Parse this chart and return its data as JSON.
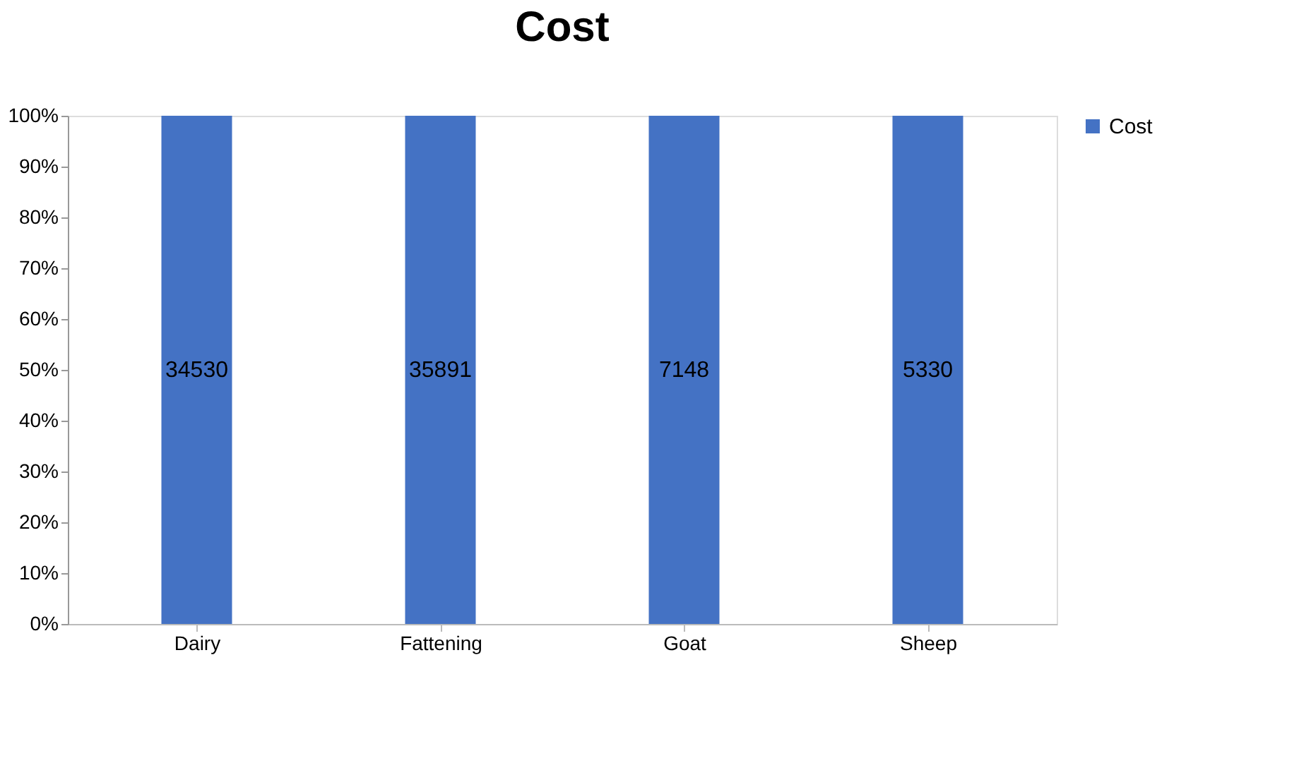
{
  "chart_data": {
    "type": "bar",
    "title": "Cost",
    "categories": [
      "Dairy",
      "Fattening",
      "Goat",
      "Sheep"
    ],
    "series": [
      {
        "name": "Cost",
        "color": "#4472c4",
        "values": [
          100,
          100,
          100,
          100
        ]
      }
    ],
    "annotations": [
      "34530",
      "35891",
      "7148",
      "5330"
    ],
    "ylim": [
      0,
      100
    ],
    "yticks": [
      {
        "value": 0,
        "label": "0%"
      },
      {
        "value": 10,
        "label": "10%"
      },
      {
        "value": 20,
        "label": "20%"
      },
      {
        "value": 30,
        "label": "30%"
      },
      {
        "value": 40,
        "label": "40%"
      },
      {
        "value": 50,
        "label": "50%"
      },
      {
        "value": 60,
        "label": "60%"
      },
      {
        "value": 70,
        "label": "70%"
      },
      {
        "value": 80,
        "label": "80%"
      },
      {
        "value": 90,
        "label": "90%"
      },
      {
        "value": 100,
        "label": "100%"
      }
    ],
    "grid": false,
    "legend": "right"
  }
}
